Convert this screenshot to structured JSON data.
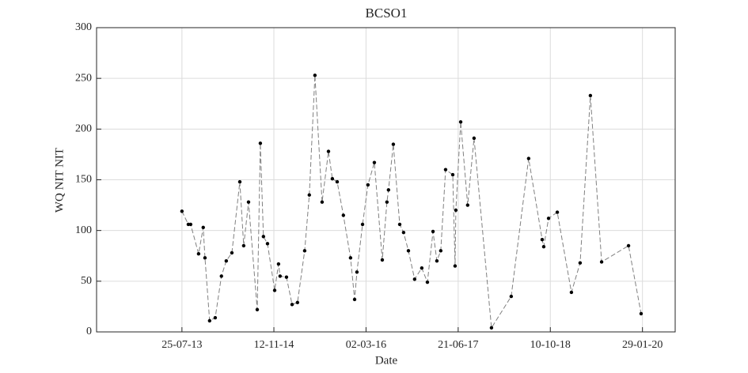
{
  "chart_data": {
    "type": "line",
    "title": "BCSO1",
    "xlabel": "Date",
    "ylabel": "WQ NIT NIT",
    "x": [
      "2013-07-25",
      "2013-08-27",
      "2013-09-08",
      "2013-10-19",
      "2013-11-12",
      "2013-11-21",
      "2013-12-15",
      "2014-01-13",
      "2014-02-14",
      "2014-03-11",
      "2014-04-09",
      "2014-05-20",
      "2014-06-09",
      "2014-07-04",
      "2014-08-18",
      "2014-09-03",
      "2014-09-19",
      "2014-10-10",
      "2014-11-16",
      "2014-12-06",
      "2014-12-14",
      "2015-01-16",
      "2015-02-14",
      "2015-03-14",
      "2015-04-20",
      "2015-05-14",
      "2015-06-12",
      "2015-07-19",
      "2015-08-21",
      "2015-09-10",
      "2015-10-05",
      "2015-11-06",
      "2015-12-13",
      "2016-01-03",
      "2016-01-15",
      "2016-02-13",
      "2016-03-12",
      "2016-04-14",
      "2016-05-25",
      "2016-06-18",
      "2016-06-26",
      "2016-07-21",
      "2016-08-23",
      "2016-09-12",
      "2016-10-07",
      "2016-11-08",
      "2016-12-15",
      "2017-01-13",
      "2017-02-11",
      "2017-03-03",
      "2017-03-23",
      "2017-04-17",
      "2017-05-24",
      "2017-06-05",
      "2017-06-09",
      "2017-07-04",
      "2017-08-09",
      "2017-09-11",
      "2017-12-10",
      "2018-03-22",
      "2018-06-20",
      "2018-08-29",
      "2018-09-06",
      "2018-10-01",
      "2018-11-15",
      "2019-01-27",
      "2019-03-13",
      "2019-05-05",
      "2019-07-02",
      "2019-11-18",
      "2020-01-22"
    ],
    "series": [
      {
        "color": "#808080",
        "marker_color": "#000000",
        "values": [
          119,
          106,
          106,
          77,
          103,
          73,
          11,
          14,
          55,
          70,
          78,
          148,
          85,
          128,
          22,
          186,
          94,
          87,
          41,
          67,
          55,
          54,
          27,
          29,
          80,
          135,
          253,
          128,
          178,
          151,
          148,
          115,
          73,
          32,
          59,
          106,
          145,
          167,
          71,
          128,
          140,
          185,
          106,
          98,
          80,
          52,
          63,
          49,
          99,
          70,
          80,
          160,
          155,
          65,
          120,
          207,
          125,
          191,
          4,
          35,
          171,
          91,
          84,
          112,
          118,
          39,
          68,
          233,
          69,
          85,
          18
        ]
      }
    ],
    "xlim": [
      "2012-05-10",
      "2020-07-16"
    ],
    "xticks": [
      {
        "value": "2013-07-25",
        "label": "25-07-13"
      },
      {
        "value": "2014-11-12",
        "label": "12-11-14"
      },
      {
        "value": "2016-03-02",
        "label": "02-03-16"
      },
      {
        "value": "2017-06-21",
        "label": "21-06-17"
      },
      {
        "value": "2018-10-10",
        "label": "10-10-18"
      },
      {
        "value": "2020-01-29",
        "label": "29-01-20"
      }
    ],
    "ylim": [
      0,
      300
    ],
    "yticks": [
      0,
      50,
      100,
      150,
      200,
      250,
      300
    ],
    "grid": true
  }
}
